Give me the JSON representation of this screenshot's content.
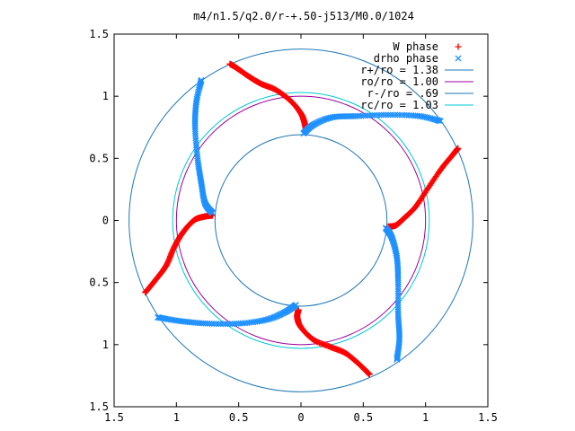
{
  "chart_data": {
    "type": "scatter",
    "title": "m4/n1.5/q2.0/r-+.50-j513/M0.0/1024",
    "xlabel": "",
    "ylabel": "",
    "xlim": [
      -1.5,
      1.5
    ],
    "ylim": [
      -1.5,
      1.5
    ],
    "x_ticks": [
      -1.5,
      -1,
      -0.5,
      0,
      0.5,
      1,
      1.5
    ],
    "y_ticks": [
      -1.5,
      -1,
      -0.5,
      0,
      0.5,
      1,
      1.5
    ],
    "x_tick_labels": [
      "1.5",
      "1",
      "0.5",
      "0",
      "0.5",
      "1",
      "1.5"
    ],
    "y_tick_labels": [
      "1.5",
      "1",
      "0.5",
      "0",
      "0.5",
      "1",
      "1.5"
    ],
    "grid": false,
    "legend_position": "top-right",
    "series": [
      {
        "name": "W phase",
        "kind": "points",
        "marker": "plus",
        "color": "#ff0000",
        "branches": [
          [
            [
              0.04,
              0.72
            ],
            [
              0.03,
              0.78
            ],
            [
              0.0,
              0.86
            ],
            [
              -0.08,
              0.96
            ],
            [
              -0.2,
              1.05
            ],
            [
              -0.32,
              1.1
            ],
            [
              -0.42,
              1.16
            ],
            [
              -0.52,
              1.23
            ],
            [
              -0.57,
              1.26
            ]
          ],
          [
            [
              0.7,
              -0.05
            ],
            [
              0.76,
              -0.04
            ],
            [
              0.83,
              0.02
            ],
            [
              0.92,
              0.11
            ],
            [
              1.02,
              0.26
            ],
            [
              1.13,
              0.42
            ],
            [
              1.22,
              0.53
            ],
            [
              1.26,
              0.58
            ]
          ],
          [
            [
              -0.02,
              -0.72
            ],
            [
              -0.03,
              -0.78
            ],
            [
              0.0,
              -0.86
            ],
            [
              0.1,
              -0.96
            ],
            [
              0.24,
              -1.02
            ],
            [
              0.36,
              -1.07
            ],
            [
              0.48,
              -1.17
            ],
            [
              0.55,
              -1.24
            ]
          ],
          [
            [
              -0.71,
              0.04
            ],
            [
              -0.78,
              0.03
            ],
            [
              -0.86,
              0.0
            ],
            [
              -0.95,
              -0.1
            ],
            [
              -1.02,
              -0.22
            ],
            [
              -1.08,
              -0.36
            ],
            [
              -1.16,
              -0.47
            ],
            [
              -1.25,
              -0.58
            ]
          ]
        ]
      },
      {
        "name": "drho phase",
        "kind": "points",
        "marker": "cross",
        "color": "#1e90ff",
        "branches": [
          [
            [
              0.02,
              0.7
            ],
            [
              0.1,
              0.77
            ],
            [
              0.25,
              0.83
            ],
            [
              0.45,
              0.84
            ],
            [
              0.7,
              0.85
            ],
            [
              0.95,
              0.84
            ],
            [
              1.12,
              0.8
            ]
          ],
          [
            [
              0.68,
              -0.06
            ],
            [
              0.73,
              -0.14
            ],
            [
              0.77,
              -0.3
            ],
            [
              0.78,
              -0.5
            ],
            [
              0.78,
              -0.75
            ],
            [
              0.79,
              -0.95
            ],
            [
              0.77,
              -1.12
            ]
          ],
          [
            [
              -0.04,
              -0.68
            ],
            [
              -0.13,
              -0.74
            ],
            [
              -0.28,
              -0.8
            ],
            [
              -0.5,
              -0.83
            ],
            [
              -0.75,
              -0.83
            ],
            [
              -0.97,
              -0.81
            ],
            [
              -1.15,
              -0.78
            ]
          ],
          [
            [
              -0.71,
              0.06
            ],
            [
              -0.77,
              0.14
            ],
            [
              -0.8,
              0.3
            ],
            [
              -0.83,
              0.5
            ],
            [
              -0.85,
              0.75
            ],
            [
              -0.84,
              0.95
            ],
            [
              -0.8,
              1.13
            ]
          ]
        ]
      },
      {
        "name": "r+/ro = 1.38",
        "kind": "circle",
        "radius": 1.38,
        "color": "#1f77b4"
      },
      {
        "name": "ro/ro = 1.00",
        "kind": "circle",
        "radius": 1.0,
        "color": "#9b009b"
      },
      {
        "name": "r-/ro = .69",
        "kind": "circle",
        "radius": 0.69,
        "color": "#1f77b4"
      },
      {
        "name": "rc/ro = 1.03",
        "kind": "circle",
        "radius": 1.03,
        "color": "#00c8d2"
      }
    ]
  }
}
